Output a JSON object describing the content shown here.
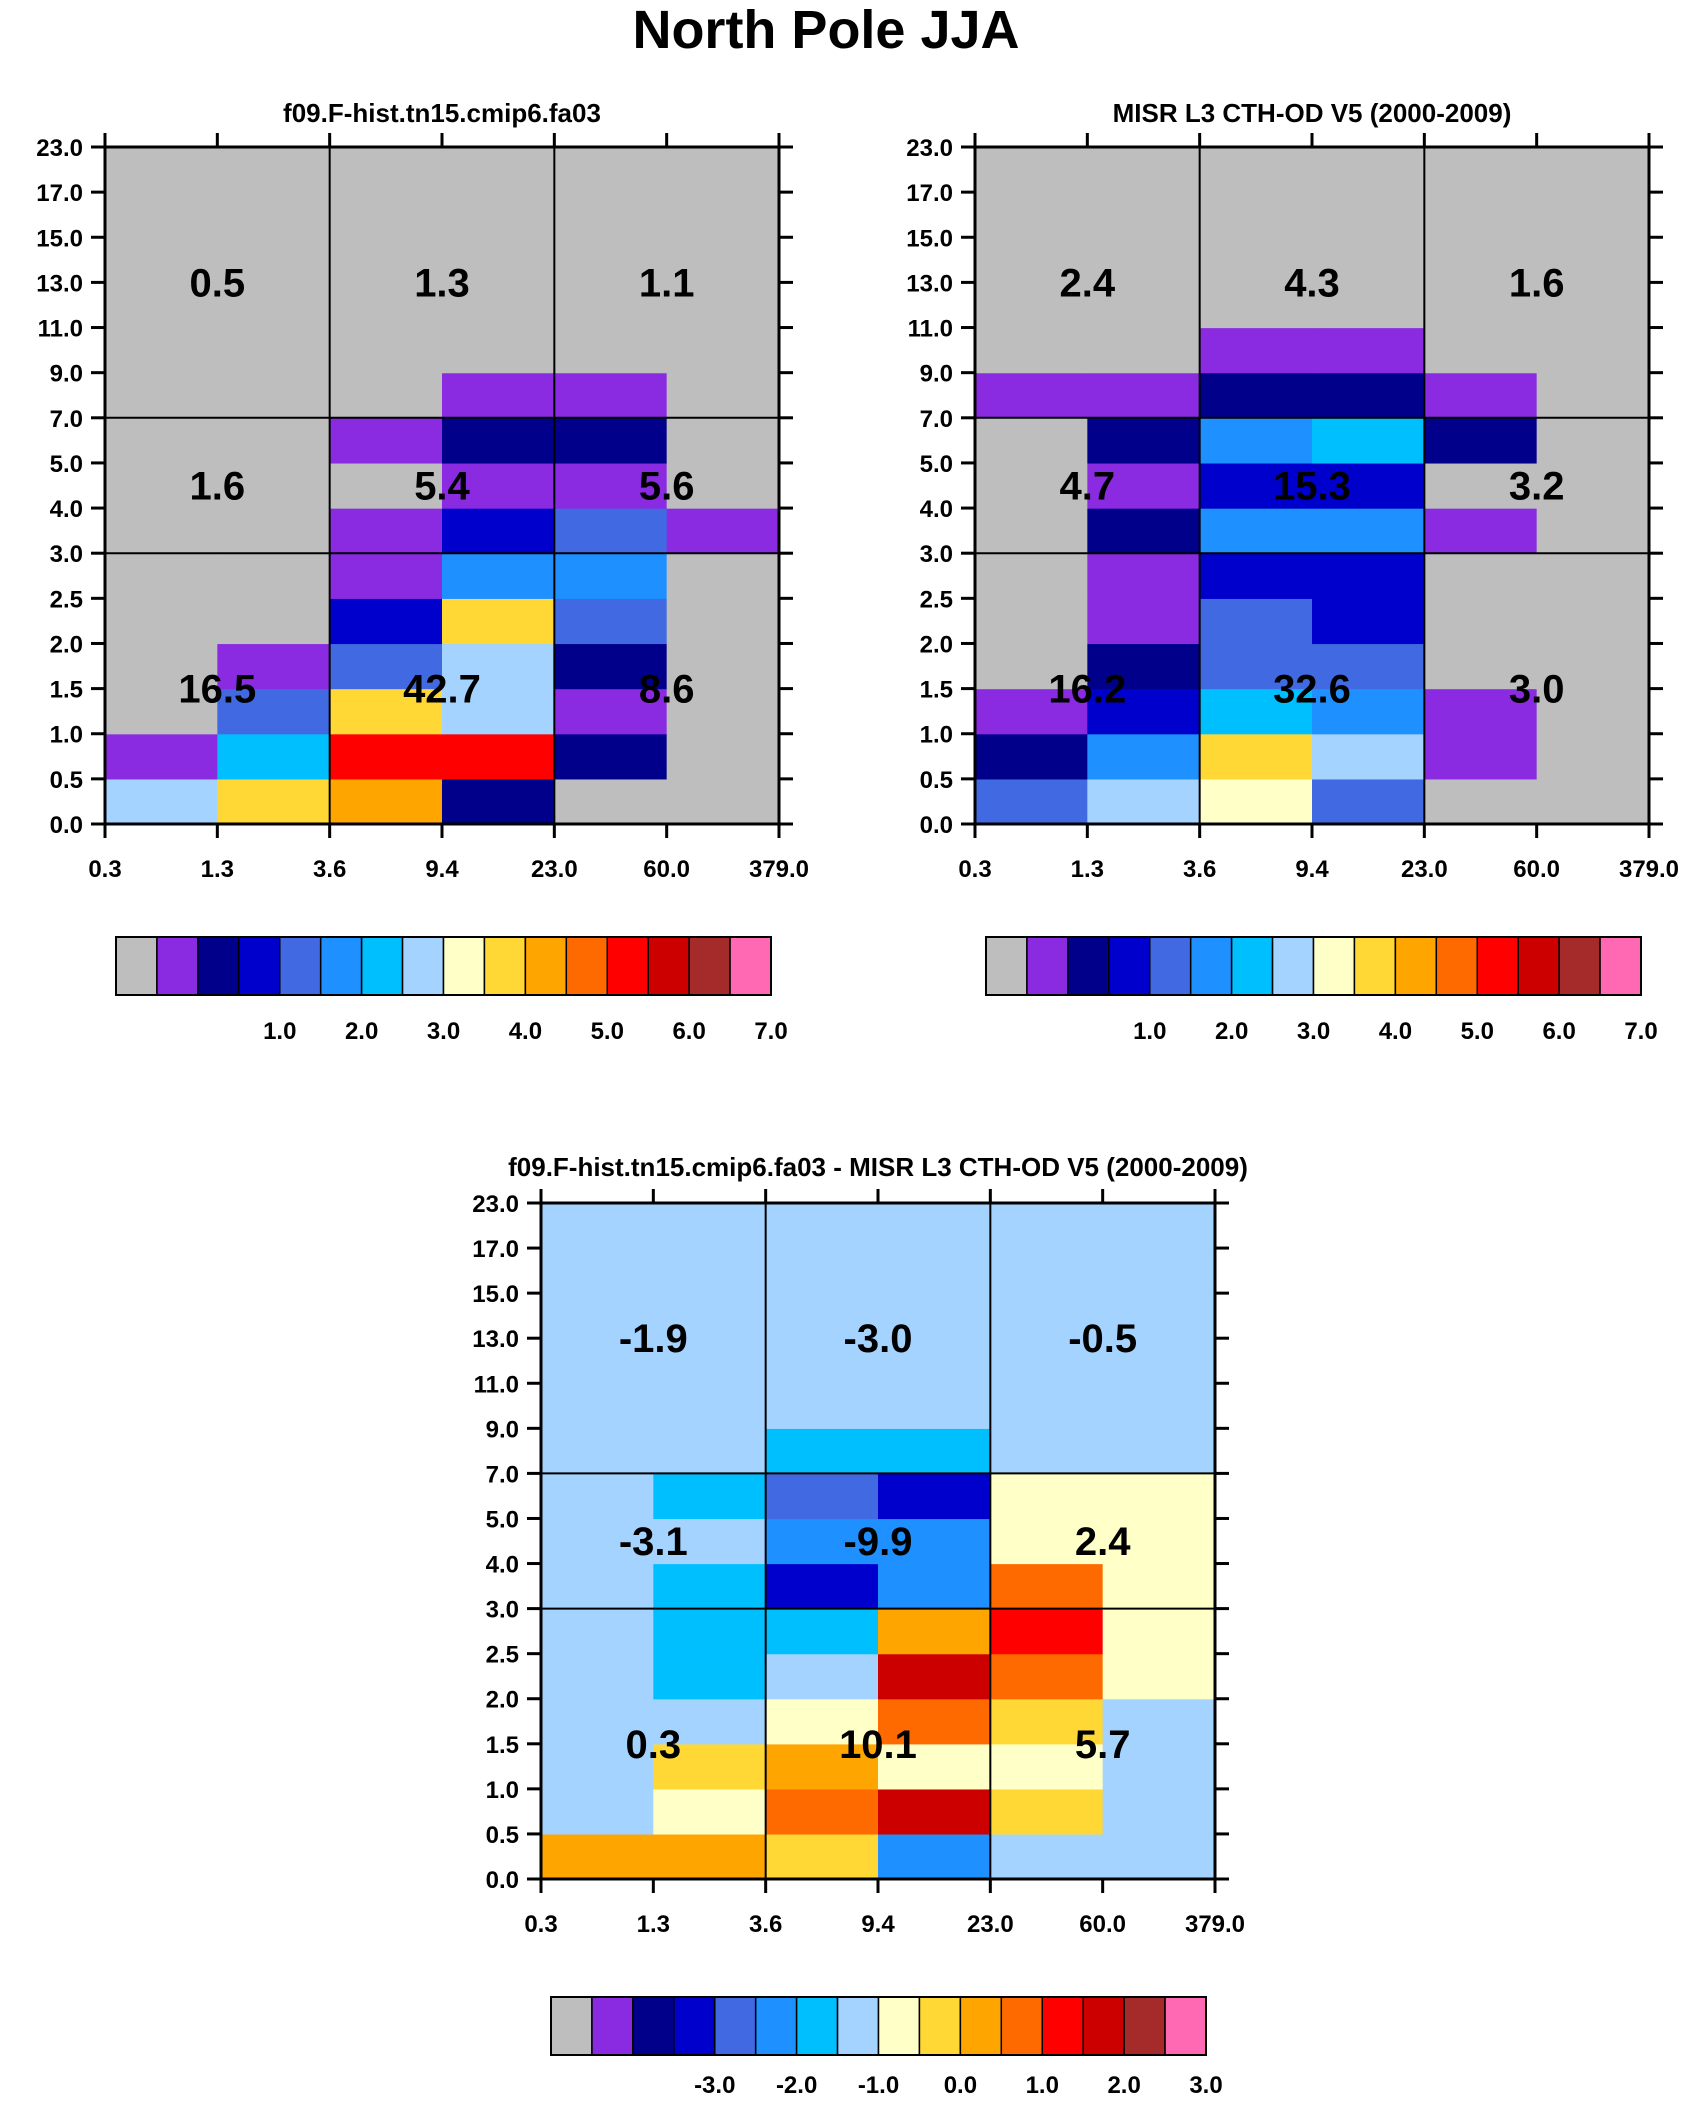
{
  "figure_title": "North Pole JJA",
  "chart_data": [
    {
      "type": "heatmap",
      "id": "model",
      "title": "f09.F-hist.tn15.cmip6.fa03",
      "x_tick_labels": [
        "0.3",
        "1.3",
        "3.6",
        "9.4",
        "23.0",
        "60.0",
        "379.0"
      ],
      "y_tick_labels": [
        "0.0",
        "0.5",
        "1.0",
        "1.5",
        "2.0",
        "2.5",
        "3.0",
        "4.0",
        "5.0",
        "7.0",
        "9.0",
        "11.0",
        "13.0",
        "15.0",
        "17.0",
        "23.0"
      ],
      "cell_color_index_rows_bottom_to_top": [
        [
          7,
          9,
          10,
          2,
          0,
          0
        ],
        [
          1,
          6,
          12,
          12,
          2,
          0
        ],
        [
          0,
          4,
          9,
          7,
          1,
          0
        ],
        [
          0,
          1,
          4,
          7,
          2,
          0
        ],
        [
          0,
          0,
          3,
          9,
          4,
          0
        ],
        [
          0,
          0,
          1,
          5,
          5,
          0
        ],
        [
          0,
          0,
          1,
          3,
          4,
          1
        ],
        [
          0,
          0,
          0,
          1,
          1,
          0
        ],
        [
          0,
          0,
          1,
          2,
          2,
          0
        ],
        [
          0,
          0,
          0,
          1,
          1,
          0
        ],
        [
          0,
          0,
          0,
          0,
          0,
          0
        ],
        [
          0,
          0,
          0,
          0,
          0,
          0
        ],
        [
          0,
          0,
          0,
          0,
          0,
          0
        ],
        [
          0,
          0,
          0,
          0,
          0,
          0
        ],
        [
          0,
          0,
          0,
          0,
          0,
          0
        ]
      ],
      "block_values_rows_top_to_bottom": [
        [
          "0.5",
          "1.3",
          "1.1"
        ],
        [
          "1.6",
          "5.4",
          "5.6"
        ],
        [
          "16.5",
          "42.7",
          "8.6"
        ]
      ],
      "colorbar_labels": [
        "1.0",
        "2.0",
        "3.0",
        "4.0",
        "5.0",
        "6.0",
        "7.0"
      ]
    },
    {
      "type": "heatmap",
      "id": "obs",
      "title": "MISR L3 CTH-OD V5 (2000-2009)",
      "x_tick_labels": [
        "0.3",
        "1.3",
        "3.6",
        "9.4",
        "23.0",
        "60.0",
        "379.0"
      ],
      "y_tick_labels": [
        "0.0",
        "0.5",
        "1.0",
        "1.5",
        "2.0",
        "2.5",
        "3.0",
        "4.0",
        "5.0",
        "7.0",
        "9.0",
        "11.0",
        "13.0",
        "15.0",
        "17.0",
        "23.0"
      ],
      "cell_color_index_rows_bottom_to_top": [
        [
          4,
          7,
          8,
          4,
          0,
          0
        ],
        [
          2,
          5,
          9,
          7,
          1,
          0
        ],
        [
          1,
          3,
          6,
          5,
          1,
          0
        ],
        [
          0,
          2,
          4,
          4,
          0,
          0
        ],
        [
          0,
          1,
          4,
          3,
          0,
          0
        ],
        [
          0,
          1,
          3,
          3,
          0,
          0
        ],
        [
          0,
          2,
          5,
          5,
          1,
          0
        ],
        [
          0,
          1,
          3,
          3,
          0,
          0
        ],
        [
          0,
          2,
          5,
          6,
          2,
          0
        ],
        [
          1,
          1,
          2,
          2,
          1,
          0
        ],
        [
          0,
          0,
          1,
          1,
          0,
          0
        ],
        [
          0,
          0,
          0,
          0,
          0,
          0
        ],
        [
          0,
          0,
          0,
          0,
          0,
          0
        ],
        [
          0,
          0,
          0,
          0,
          0,
          0
        ],
        [
          0,
          0,
          0,
          0,
          0,
          0
        ]
      ],
      "block_values_rows_top_to_bottom": [
        [
          "2.4",
          "4.3",
          "1.6"
        ],
        [
          "4.7",
          "15.3",
          "3.2"
        ],
        [
          "16.2",
          "32.6",
          "3.0"
        ]
      ],
      "colorbar_labels": [
        "1.0",
        "2.0",
        "3.0",
        "4.0",
        "5.0",
        "6.0",
        "7.0"
      ]
    },
    {
      "type": "heatmap",
      "id": "diff",
      "title": "f09.F-hist.tn15.cmip6.fa03 - MISR L3 CTH-OD V5 (2000-2009)",
      "x_tick_labels": [
        "0.3",
        "1.3",
        "3.6",
        "9.4",
        "23.0",
        "60.0",
        "379.0"
      ],
      "y_tick_labels": [
        "0.0",
        "0.5",
        "1.0",
        "1.5",
        "2.0",
        "2.5",
        "3.0",
        "4.0",
        "5.0",
        "7.0",
        "9.0",
        "11.0",
        "13.0",
        "15.0",
        "17.0",
        "23.0"
      ],
      "cell_color_index_rows_bottom_to_top": [
        [
          10,
          10,
          9,
          5,
          7,
          7
        ],
        [
          7,
          8,
          11,
          13,
          9,
          7
        ],
        [
          7,
          9,
          10,
          8,
          8,
          7
        ],
        [
          7,
          7,
          8,
          11,
          9,
          7
        ],
        [
          7,
          6,
          7,
          13,
          11,
          8
        ],
        [
          7,
          6,
          6,
          10,
          12,
          8
        ],
        [
          7,
          6,
          3,
          5,
          11,
          8
        ],
        [
          7,
          7,
          5,
          5,
          8,
          8
        ],
        [
          7,
          6,
          4,
          3,
          8,
          8
        ],
        [
          7,
          7,
          6,
          6,
          7,
          7
        ],
        [
          7,
          7,
          7,
          7,
          7,
          7
        ],
        [
          7,
          7,
          7,
          7,
          7,
          7
        ],
        [
          7,
          7,
          7,
          7,
          7,
          7
        ],
        [
          7,
          7,
          7,
          7,
          7,
          7
        ],
        [
          7,
          7,
          7,
          7,
          7,
          7
        ]
      ],
      "block_values_rows_top_to_bottom": [
        [
          "-1.9",
          "-3.0",
          "-0.5"
        ],
        [
          "-3.1",
          "-9.9",
          "2.4"
        ],
        [
          "0.3",
          "10.1",
          "5.7"
        ]
      ],
      "colorbar_labels": [
        "-3.0",
        "-2.0",
        "-1.0",
        "0.0",
        "1.0",
        "2.0",
        "3.0"
      ]
    }
  ],
  "palette": [
    "#bebebe",
    "#8a2be2",
    "#00008b",
    "#0000cd",
    "#4169e1",
    "#1e90ff",
    "#00bfff",
    "#a4d3ff",
    "#ffffc8",
    "#ffd836",
    "#ffa500",
    "#ff6a00",
    "#ff0000",
    "#cd0000",
    "#a52a2a",
    "#ff69b4"
  ]
}
